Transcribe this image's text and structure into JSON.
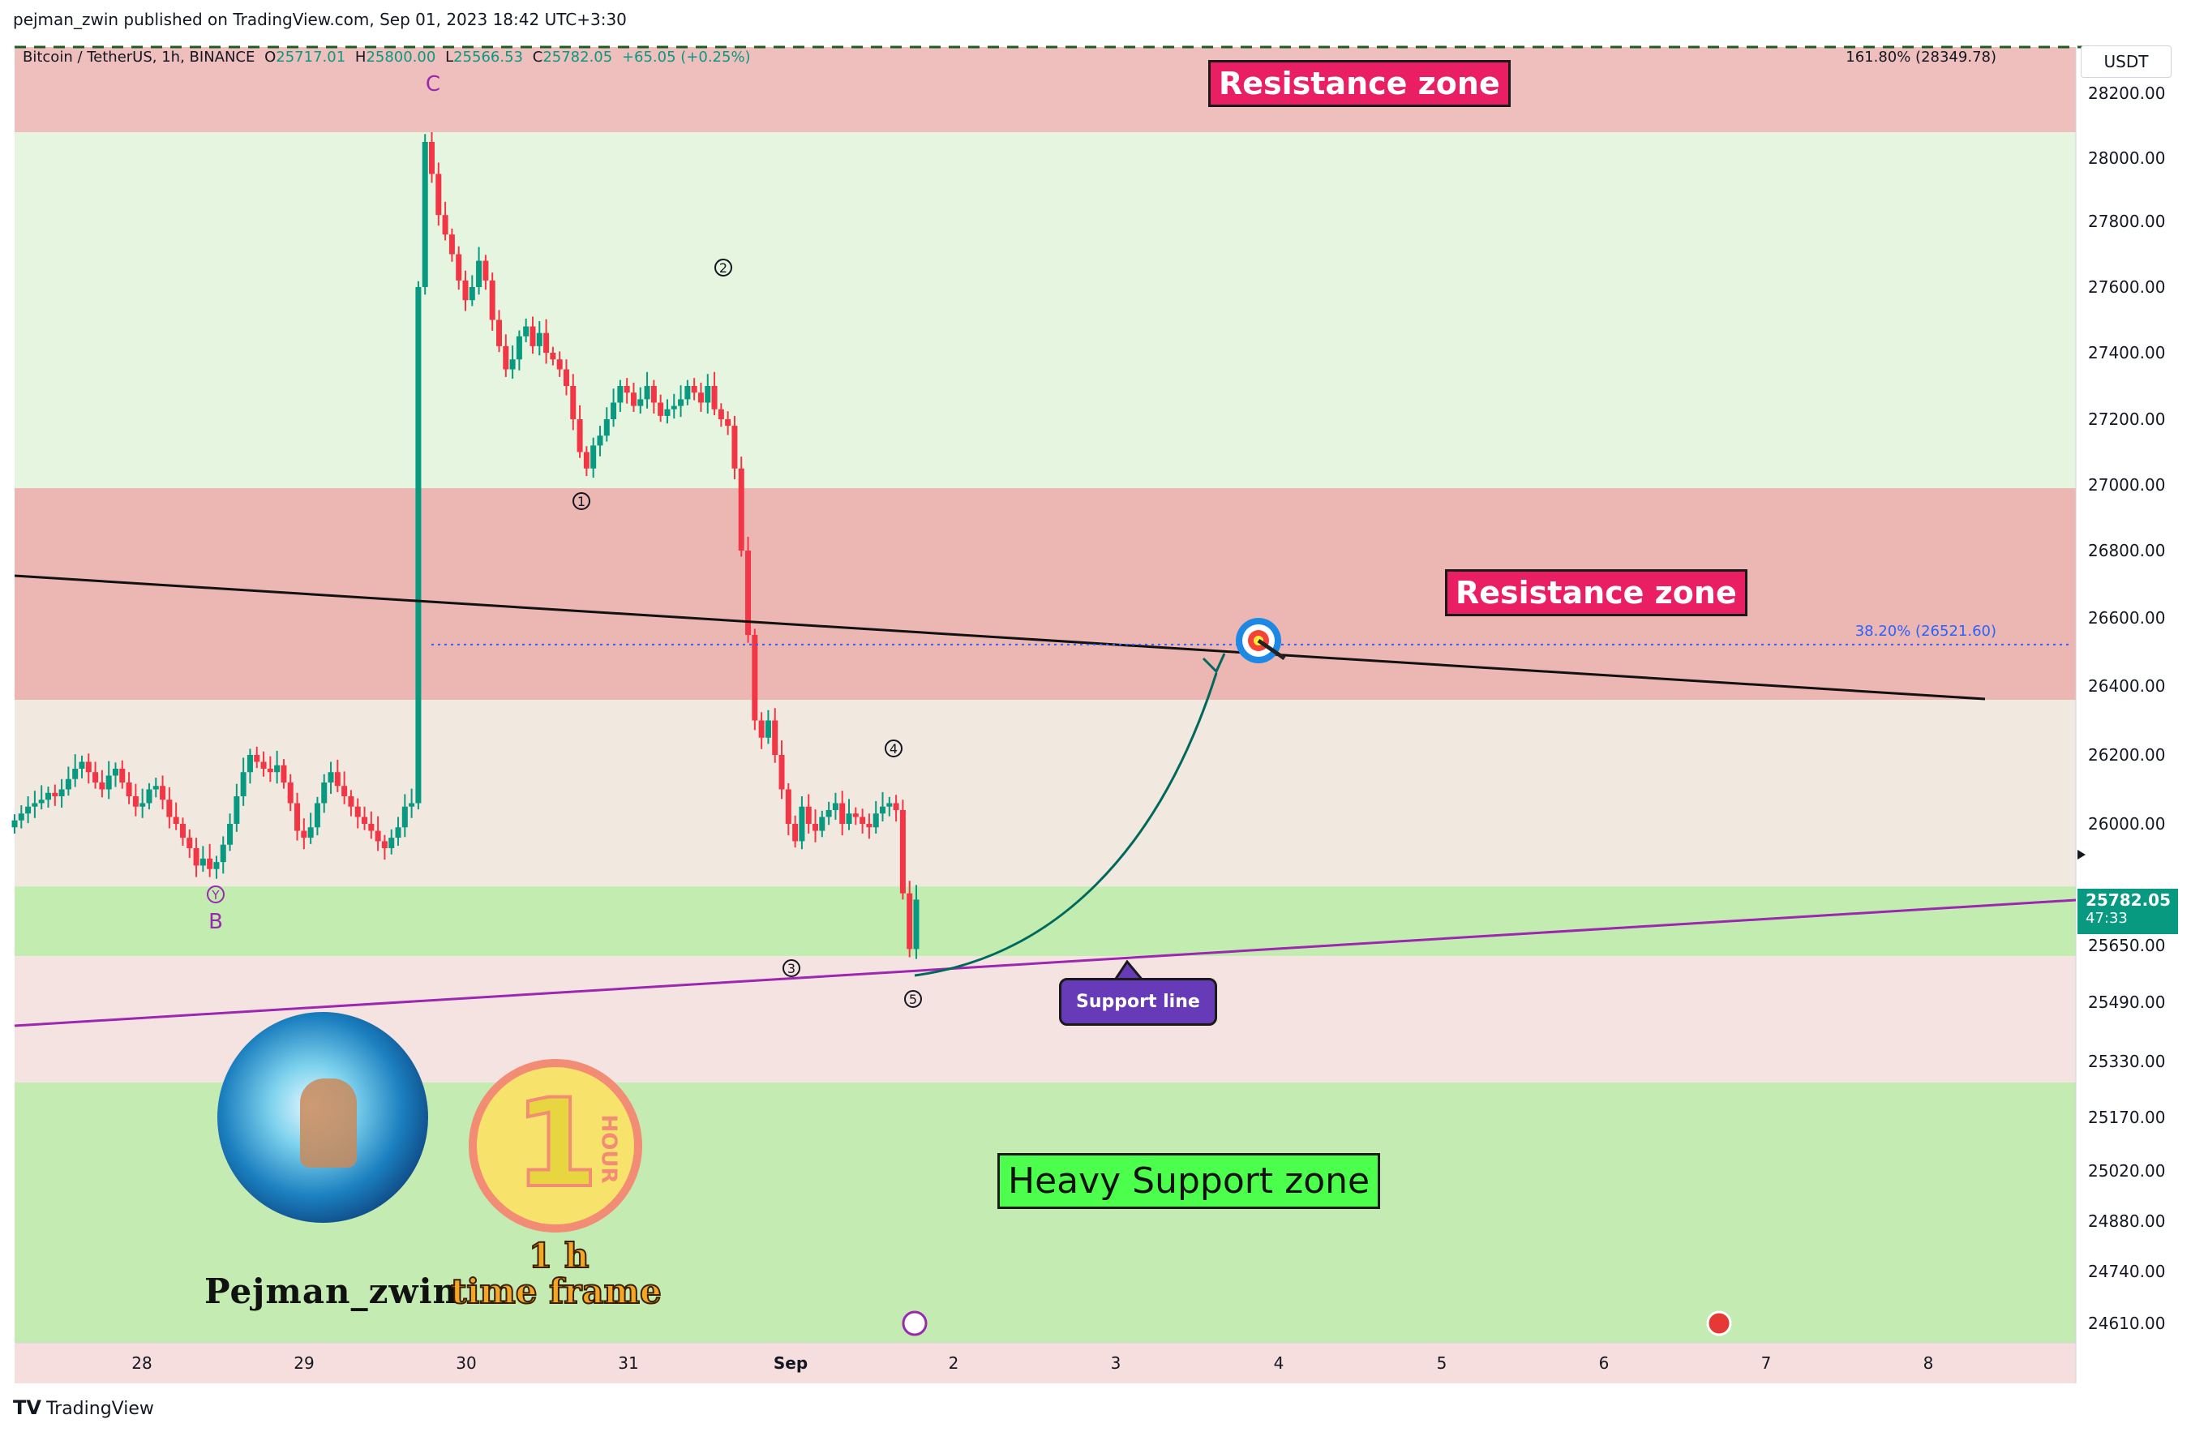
{
  "publish_info": "pejman_zwin published on TradingView.com, Sep 01, 2023 18:42 UTC+3:30",
  "symbol_line": {
    "symbol": "Bitcoin / TetherUS, 1h, BINANCE",
    "open_label": "O",
    "open": "25717.01",
    "high_label": "H",
    "high": "25800.00",
    "low_label": "L",
    "low": "25566.53",
    "close_label": "C",
    "close": "25782.05",
    "change": "+65.05 (+0.25%)"
  },
  "currency": "USDT",
  "fib_top_label": "161.80% (28349.78)",
  "fib_mid_label": "38.20% (26521.60)",
  "current_price": "25782.05",
  "countdown": "47:33",
  "labels": {
    "resistance_top": "Resistance zone",
    "resistance_mid": "Resistance zone",
    "heavy_support": "Heavy Support zone",
    "support_line": "Support line"
  },
  "wave_labels": {
    "c": "C",
    "b": "B",
    "y": "Y",
    "w1": "1",
    "w2": "2",
    "w3": "3",
    "w4": "4",
    "w5": "5"
  },
  "branding": {
    "author": "Pejman_zwin",
    "tf_value": "1 h",
    "tf_text": "time frame",
    "hour_badge_number": "1",
    "hour_badge_text": "HOUR"
  },
  "footer_brand": "TradingView",
  "colors": {
    "bull": "#089981",
    "bear": "#f23645",
    "resistance_fill": "#e8a9a5",
    "support_fill": "#b9e8a5",
    "pink_band": "#f5e3e1",
    "light_green": "#e5f5df",
    "purple_line": "#9c27b0",
    "price_tag": "#089981"
  },
  "chart_data": {
    "type": "candlestick",
    "symbol": "BTCUSDT",
    "interval": "1h",
    "x_ticks": [
      "28",
      "29",
      "30",
      "31",
      "Sep",
      "2",
      "3",
      "4",
      "5",
      "6",
      "7",
      "8"
    ],
    "y_ticks": [
      28200,
      28000,
      27800,
      27600,
      27400,
      27200,
      27000,
      26800,
      26600,
      26400,
      26200,
      26000,
      25650,
      25490,
      25330,
      25170,
      25020,
      24880,
      24740,
      24610
    ],
    "zones": [
      {
        "name": "Resistance zone",
        "from": 28080,
        "to": 28349.78
      },
      {
        "name": "Resistance zone",
        "from": 26360,
        "to": 26990
      },
      {
        "name": "Heavy Support zone",
        "from": 24560,
        "to": 25270
      }
    ],
    "fib_levels": [
      {
        "label": "161.80%",
        "price": 28349.78
      },
      {
        "label": "38.20%",
        "price": 26521.6
      }
    ],
    "last_close": 25782.05,
    "ohlc_closes": [
      26010,
      26030,
      26050,
      26060,
      26070,
      26090,
      26080,
      26100,
      26130,
      26160,
      26180,
      26150,
      26120,
      26100,
      26140,
      26160,
      26120,
      26080,
      26050,
      26060,
      26100,
      26110,
      26070,
      26020,
      26000,
      25960,
      25930,
      25880,
      25900,
      25870,
      25890,
      25940,
      26000,
      26080,
      26150,
      26200,
      26180,
      26160,
      26150,
      26170,
      26120,
      26060,
      25980,
      25960,
      25990,
      26060,
      26120,
      26150,
      26110,
      26080,
      26050,
      26020,
      26000,
      25980,
      25950,
      25930,
      25960,
      25990,
      26050,
      26060,
      27600,
      28050,
      27950,
      27820,
      27760,
      27700,
      27620,
      27560,
      27600,
      27680,
      27620,
      27500,
      27420,
      27350,
      27380,
      27450,
      27480,
      27420,
      27460,
      27400,
      27380,
      27350,
      27300,
      27200,
      27100,
      27050,
      27120,
      27150,
      27200,
      27250,
      27300,
      27280,
      27240,
      27260,
      27300,
      27250,
      27210,
      27230,
      27240,
      27260,
      27300,
      27280,
      27250,
      27300,
      27230,
      27200,
      27180,
      27050,
      26800,
      26550,
      26300,
      26250,
      26300,
      26200,
      26100,
      26000,
      25950,
      26050,
      26000,
      25980,
      26020,
      26040,
      26060,
      26000,
      26030,
      26020,
      26000,
      25990,
      26030,
      26050,
      26060,
      26040,
      25800,
      25640,
      25782.05
    ]
  }
}
